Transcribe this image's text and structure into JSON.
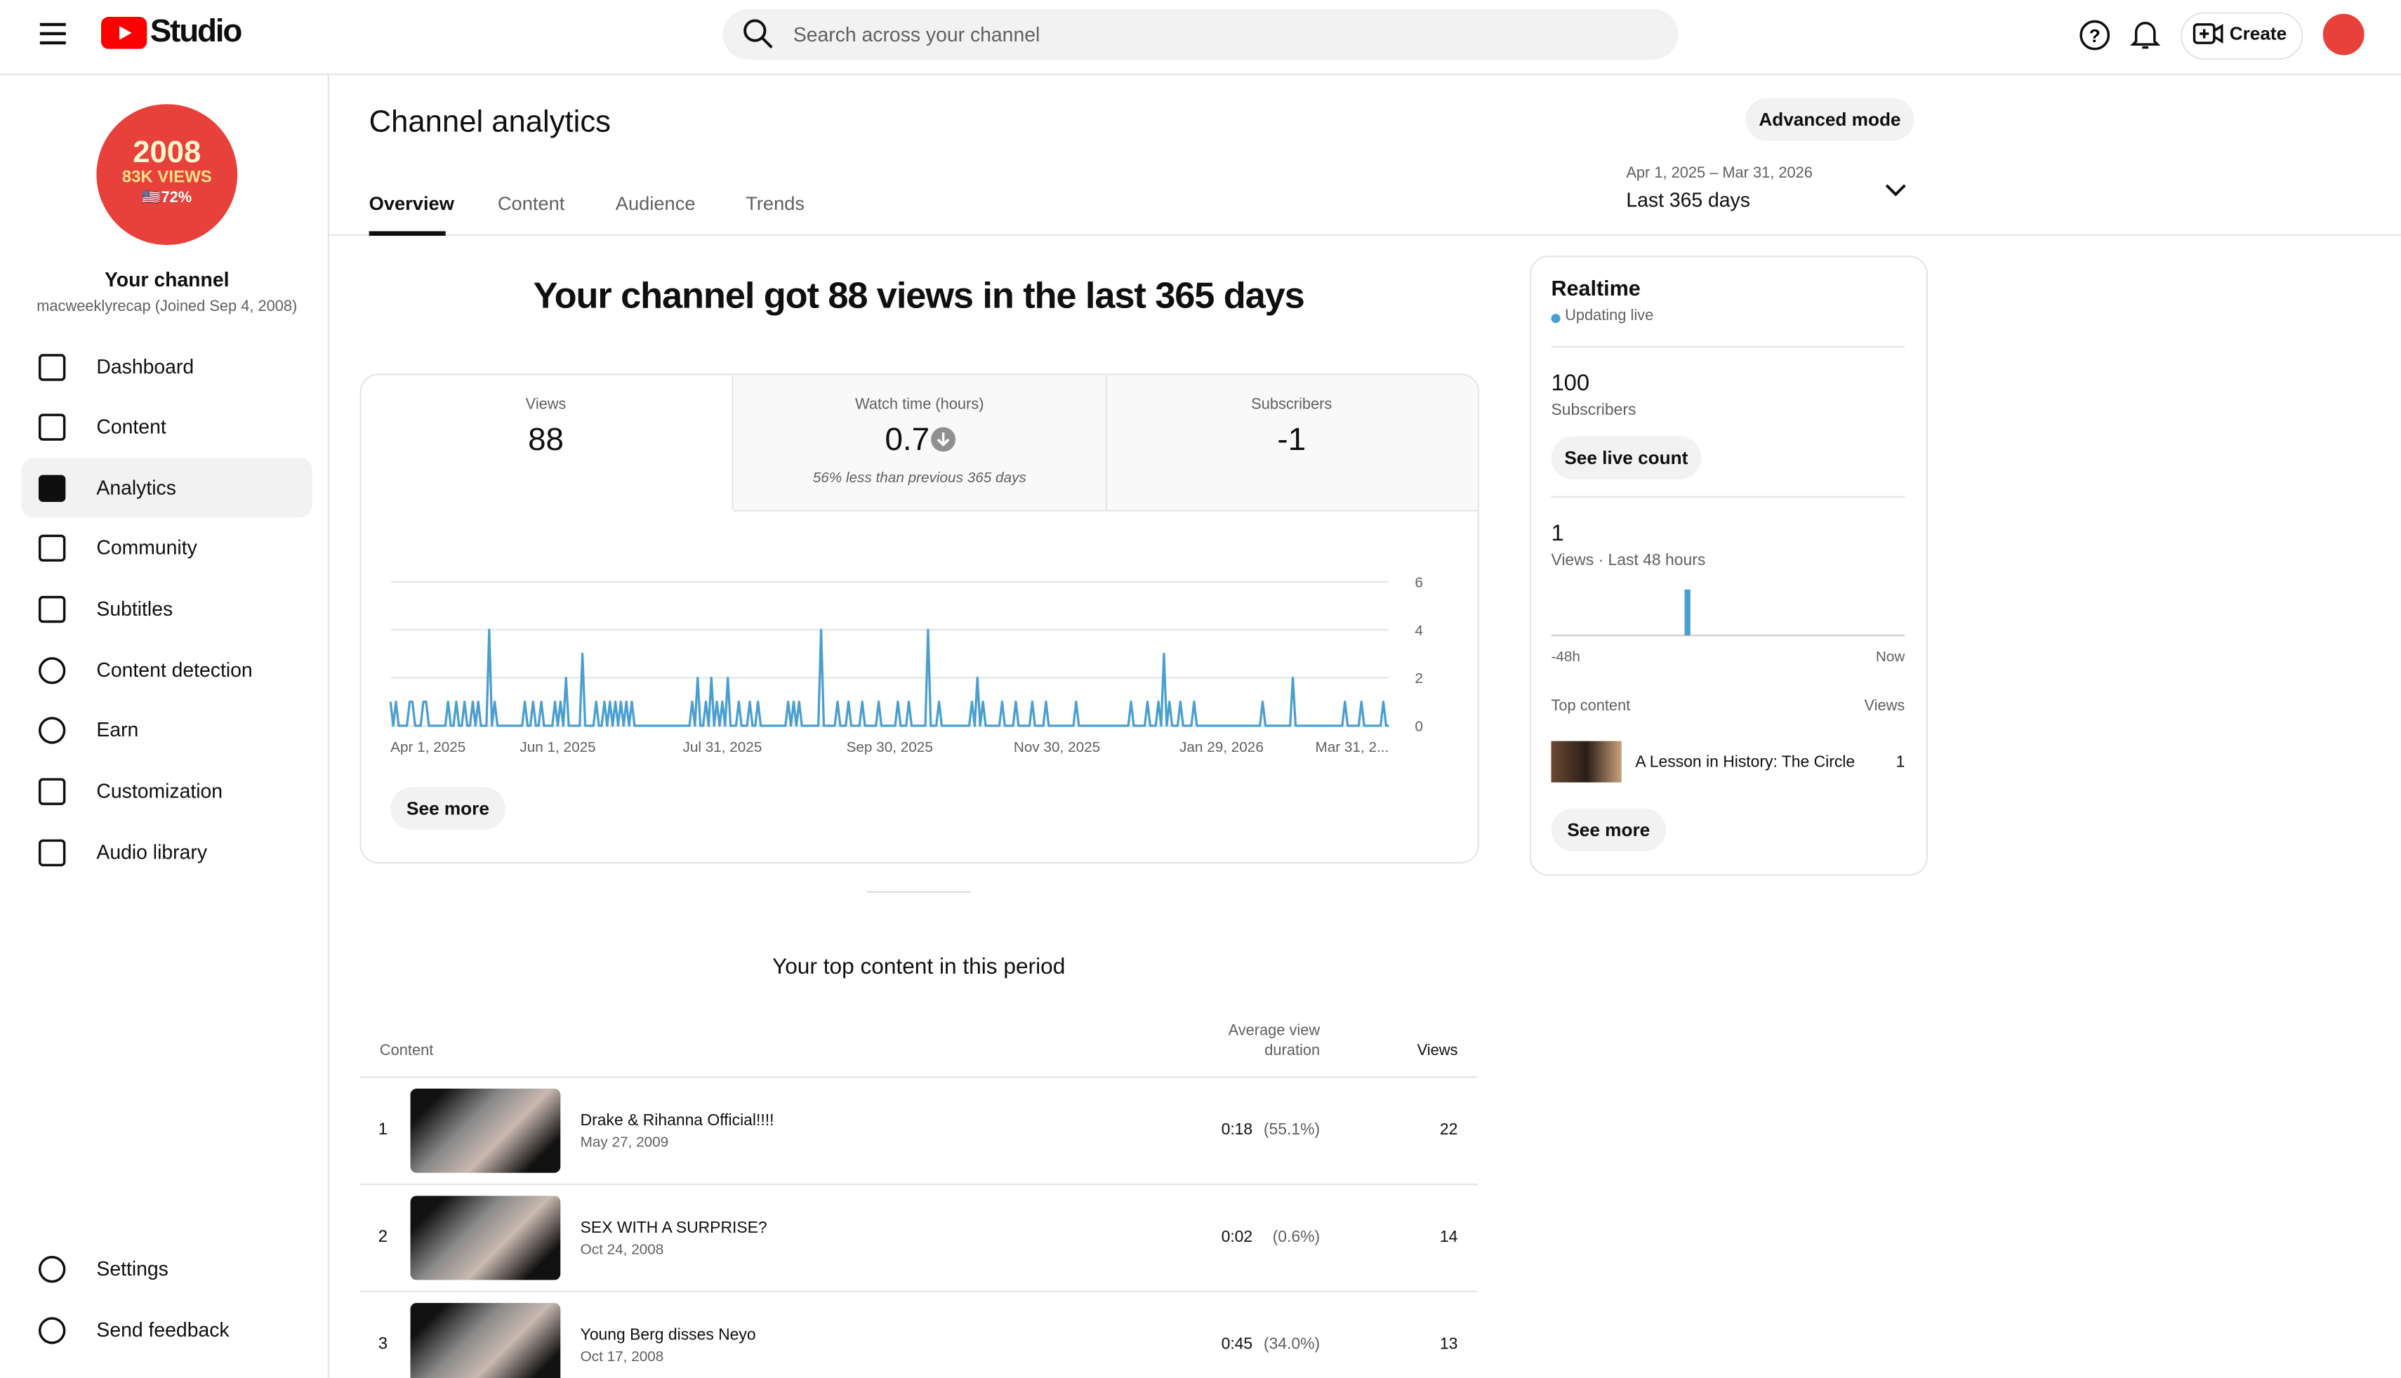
{
  "header": {
    "logo": "Studio",
    "search_placeholder": "Search across your channel",
    "create": "Create"
  },
  "sidebar": {
    "avatar": {
      "line1": "2008",
      "line2": "83K VIEWS",
      "line3": "🇺🇸72%"
    },
    "channel_title": "Your channel",
    "channel_sub": "macweeklyrecap (Joined Sep 4, 2008)",
    "nav": [
      "Dashboard",
      "Content",
      "Analytics",
      "Community",
      "Subtitles",
      "Content detection",
      "Earn",
      "Customization",
      "Audio library"
    ],
    "bottom": [
      "Settings",
      "Send feedback"
    ]
  },
  "page": {
    "title": "Channel analytics",
    "advanced": "Advanced mode",
    "tabs": [
      "Overview",
      "Content",
      "Audience",
      "Trends"
    ],
    "date_range": "Apr 1, 2025 – Mar 31, 2026",
    "period": "Last 365 days"
  },
  "summary": {
    "headline": "Your channel got 88 views in the last 365 days",
    "metrics": [
      {
        "label": "Views",
        "value": "88"
      },
      {
        "label": "Watch time (hours)",
        "value": "0.7",
        "note": "56% less than previous 365 days"
      },
      {
        "label": "Subscribers",
        "value": "-1"
      }
    ],
    "see_more": "See more"
  },
  "chart_data": {
    "type": "line",
    "color": "#4a9fd0",
    "xlim": [
      0,
      364
    ],
    "ylim": [
      0,
      6
    ],
    "yticks": [
      0,
      2,
      4,
      6
    ],
    "grid": true,
    "xticks": [
      {
        "value": 0,
        "label": "Apr 1, 2025"
      },
      {
        "value": 61,
        "label": "Jun 1, 2025"
      },
      {
        "value": 121,
        "label": "Jul 31, 2025"
      },
      {
        "value": 182,
        "label": "Sep 30, 2025"
      },
      {
        "value": 243,
        "label": "Nov 30, 2025"
      },
      {
        "value": 303,
        "label": "Jan 29, 2026"
      },
      {
        "value": 364,
        "label": "Mar 31, 2..."
      }
    ],
    "values": [
      1,
      0,
      1,
      0,
      0,
      0,
      0,
      1,
      1,
      0,
      0,
      0,
      1,
      1,
      0,
      0,
      0,
      0,
      0,
      0,
      0,
      1,
      0,
      0,
      1,
      0,
      0,
      1,
      0,
      0,
      1,
      0,
      1,
      0,
      0,
      0,
      4,
      0,
      1,
      0,
      0,
      0,
      0,
      0,
      0,
      0,
      0,
      0,
      0,
      1,
      0,
      0,
      1,
      0,
      0,
      1,
      0,
      0,
      0,
      0,
      1,
      0,
      1,
      0,
      2,
      0,
      0,
      0,
      0,
      0,
      3,
      0,
      0,
      0,
      0,
      1,
      0,
      0,
      1,
      0,
      1,
      0,
      1,
      0,
      1,
      0,
      1,
      0,
      1,
      0,
      0,
      0,
      0,
      0,
      0,
      0,
      0,
      0,
      0,
      0,
      0,
      0,
      0,
      0,
      0,
      0,
      0,
      0,
      0,
      0,
      1,
      0,
      2,
      0,
      0,
      1,
      0,
      2,
      0,
      1,
      0,
      1,
      0,
      2,
      0,
      0,
      0,
      1,
      0,
      0,
      0,
      1,
      0,
      0,
      1,
      0,
      0,
      0,
      0,
      0,
      0,
      0,
      0,
      0,
      0,
      1,
      0,
      1,
      0,
      1,
      0,
      0,
      0,
      0,
      0,
      0,
      0,
      4,
      0,
      0,
      0,
      0,
      0,
      1,
      0,
      0,
      0,
      1,
      0,
      0,
      0,
      0,
      1,
      0,
      0,
      0,
      0,
      0,
      1,
      0,
      0,
      0,
      0,
      0,
      0,
      1,
      0,
      0,
      0,
      1,
      0,
      0,
      0,
      0,
      0,
      0,
      4,
      0,
      0,
      0,
      1,
      0,
      0,
      0,
      0,
      0,
      0,
      0,
      0,
      0,
      0,
      0,
      1,
      0,
      2,
      0,
      1,
      0,
      0,
      0,
      0,
      0,
      0,
      1,
      0,
      0,
      0,
      0,
      1,
      0,
      0,
      0,
      0,
      0,
      1,
      0,
      0,
      0,
      0,
      1,
      0,
      0,
      0,
      0,
      0,
      0,
      0,
      0,
      0,
      0,
      1,
      0,
      0,
      0,
      0,
      0,
      0,
      0,
      0,
      0,
      0,
      0,
      0,
      0,
      0,
      0,
      0,
      0,
      0,
      0,
      1,
      0,
      0,
      0,
      0,
      0,
      1,
      0,
      0,
      0,
      1,
      0,
      3,
      0,
      1,
      0,
      0,
      0,
      1,
      0,
      0,
      0,
      0,
      1,
      0,
      0,
      0,
      0,
      0,
      0,
      0,
      0,
      0,
      0,
      0,
      0,
      0,
      0,
      0,
      0,
      0,
      0,
      0,
      0,
      0,
      0,
      0,
      0,
      1,
      0,
      0,
      0,
      0,
      0,
      0,
      0,
      0,
      0,
      0,
      2,
      0,
      0,
      0,
      0,
      0,
      0,
      0,
      0,
      0,
      0,
      0,
      0,
      0,
      0,
      0,
      0,
      0,
      0,
      1,
      0,
      0,
      0,
      0,
      0,
      1,
      0,
      0,
      0,
      0,
      0,
      0,
      0,
      1,
      0,
      0
    ]
  },
  "realtime": {
    "title": "Realtime",
    "status": "Updating live",
    "subscribers": "100",
    "subscribers_label": "Subscribers",
    "live_count": "See live count",
    "views": "1",
    "views_label": "Views · Last 48 hours",
    "chart": {
      "type": "bar",
      "color": "#4a9fd0",
      "values": [
        0,
        0,
        0,
        0,
        0,
        0,
        0,
        0,
        0,
        0,
        0,
        0,
        0,
        0,
        0,
        0,
        0,
        0,
        1,
        0,
        0,
        0,
        0,
        0,
        0,
        0,
        0,
        0,
        0,
        0,
        0,
        0,
        0,
        0,
        0,
        0,
        0,
        0,
        0,
        0,
        0,
        0,
        0,
        0,
        0,
        0,
        0,
        0
      ]
    },
    "start_label": "-48h",
    "end_label": "Now",
    "top_label": "Top content",
    "views_col": "Views",
    "top_title": "A Lesson in History: The Circle",
    "top_views": "1",
    "see_more": "See more"
  },
  "top_content": {
    "title": "Your top content in this period",
    "columns": [
      "Content",
      "Average view duration",
      "Views"
    ],
    "rows": [
      {
        "rank": "1",
        "title": "Drake & Rihanna Official!!!!",
        "date": "May 27, 2009",
        "duration": "0:18",
        "percent": "(55.1%)",
        "views": "22"
      },
      {
        "rank": "2",
        "title": "SEX WITH A SURPRISE?",
        "date": "Oct 24, 2008",
        "duration": "0:02",
        "percent": "(0.6%)",
        "views": "14"
      },
      {
        "rank": "3",
        "title": "Young Berg disses Neyo",
        "date": "Oct 17, 2008",
        "duration": "0:45",
        "percent": "(34.0%)",
        "views": "13"
      }
    ]
  }
}
